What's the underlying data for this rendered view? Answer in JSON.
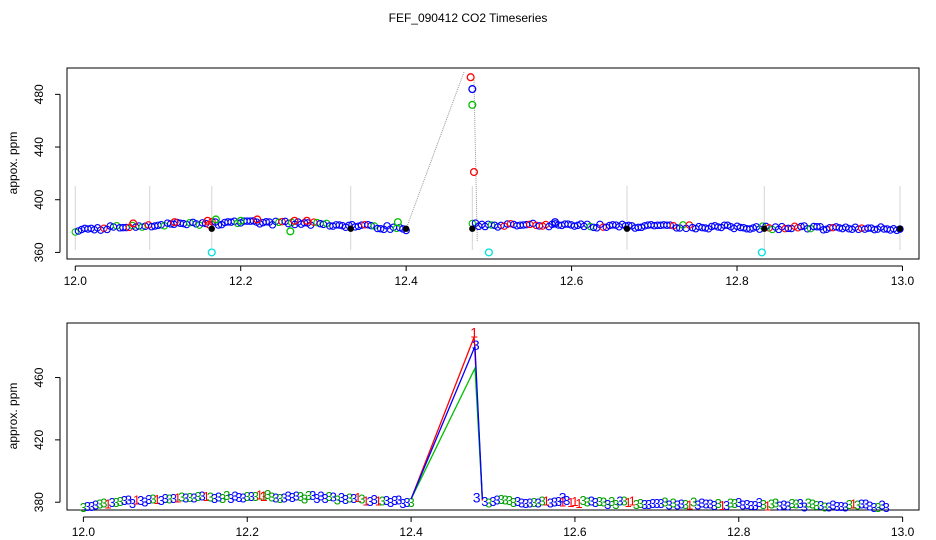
{
  "title": "FEF_090412  CO2 Timeseries",
  "chart_data": [
    {
      "type": "scatter",
      "title": "",
      "ylabel": "appox. ppm",
      "xlabel": "",
      "xlim": [
        11.99,
        13.02
      ],
      "ylim": [
        355,
        500
      ],
      "xticks": [
        12.0,
        12.2,
        12.4,
        12.6,
        12.8,
        13.0
      ],
      "xtick_labels": [
        "12.0",
        "12.2",
        "12.4",
        "12.6",
        "12.8",
        "13.0"
      ],
      "yticks": [
        360,
        400,
        440,
        480
      ],
      "ytick_labels": [
        "360",
        "400",
        "440",
        "480"
      ],
      "grid": false,
      "colors": {
        "series1": "#ff0000",
        "series2": "#00c000",
        "series3": "#0000ff",
        "black": "#000000",
        "cyan": "#00e0e0",
        "connector": "#999999"
      },
      "series": [
        {
          "color": "#ff0000",
          "x": [
            12.07,
            12.12,
            12.16,
            12.22,
            12.265,
            12.28,
            12.478,
            12.482
          ],
          "y": [
            382,
            383,
            384,
            385,
            384,
            384,
            493,
            421
          ]
        },
        {
          "color": "#00c000",
          "x": [
            12.17,
            12.2,
            12.26,
            12.39,
            12.48
          ],
          "y": [
            385,
            384,
            376,
            383,
            472
          ]
        },
        {
          "color": "#0000ff",
          "x": [
            12.48,
            12.58
          ],
          "y": [
            484,
            383
          ]
        },
        {
          "color": "#00e0e0",
          "x": [
            12.165,
            12.5,
            12.83
          ],
          "y": [
            360,
            360,
            360
          ]
        }
      ],
      "connector_x": [
        12.4,
        12.47
      ],
      "connector_y": [
        378,
        497
      ],
      "bands": [
        {
          "x0": 12.0,
          "x1": 12.4,
          "y_start": 377,
          "y_end": 378,
          "bump": 5
        },
        {
          "x0": 12.48,
          "x1": 12.997,
          "y_start": 381,
          "y_end": 378,
          "bump": 0
        }
      ],
      "spikes": [
        12.0,
        12.09,
        12.165,
        12.333,
        12.48,
        12.667,
        12.833,
        12.997
      ]
    },
    {
      "type": "line",
      "title": "",
      "ylabel": "approx. ppm",
      "xlabel": "",
      "xlim": [
        11.98,
        13.02
      ],
      "ylim": [
        375,
        495
      ],
      "xticks": [
        12.0,
        12.2,
        12.4,
        12.6,
        12.8,
        13.0
      ],
      "xtick_labels": [
        "12.0",
        "12.2",
        "12.4",
        "12.6",
        "12.8",
        "13.0"
      ],
      "yticks": [
        380,
        420,
        460
      ],
      "ytick_labels": [
        "380",
        "420",
        "460"
      ],
      "grid": false,
      "series": [
        {
          "name": "1",
          "color": "#ff0000",
          "x": [
            12.4,
            12.477,
            12.487
          ],
          "y": [
            382,
            486,
            381
          ]
        },
        {
          "name": "2",
          "color": "#00c000",
          "x": [
            12.4,
            12.478,
            12.487
          ],
          "y": [
            382,
            466,
            382
          ]
        },
        {
          "name": "3",
          "color": "#0000ff",
          "x": [
            12.4,
            12.478,
            12.487
          ],
          "y": [
            382,
            480,
            382
          ]
        }
      ],
      "point_labels": [
        {
          "text": "1",
          "color": "#ff0000",
          "x": 12.477,
          "y": 489
        },
        {
          "text": "3",
          "color": "#0000ff",
          "x": 12.479,
          "y": 481
        },
        {
          "text": "3",
          "color": "#0000ff",
          "x": 12.48,
          "y": 383
        },
        {
          "text": "3",
          "color": "#0000ff",
          "x": 12.585,
          "y": 383
        },
        {
          "text": "1",
          "color": "#ff0000",
          "x": 12.22,
          "y": 384
        }
      ],
      "bands": [
        {
          "x0": 12.0,
          "x1": 12.4,
          "y_start": 378,
          "y_end": 380,
          "bump": 5
        },
        {
          "x0": 12.49,
          "x1": 12.98,
          "y_start": 381,
          "y_end": 378,
          "bump": 0
        }
      ]
    }
  ]
}
